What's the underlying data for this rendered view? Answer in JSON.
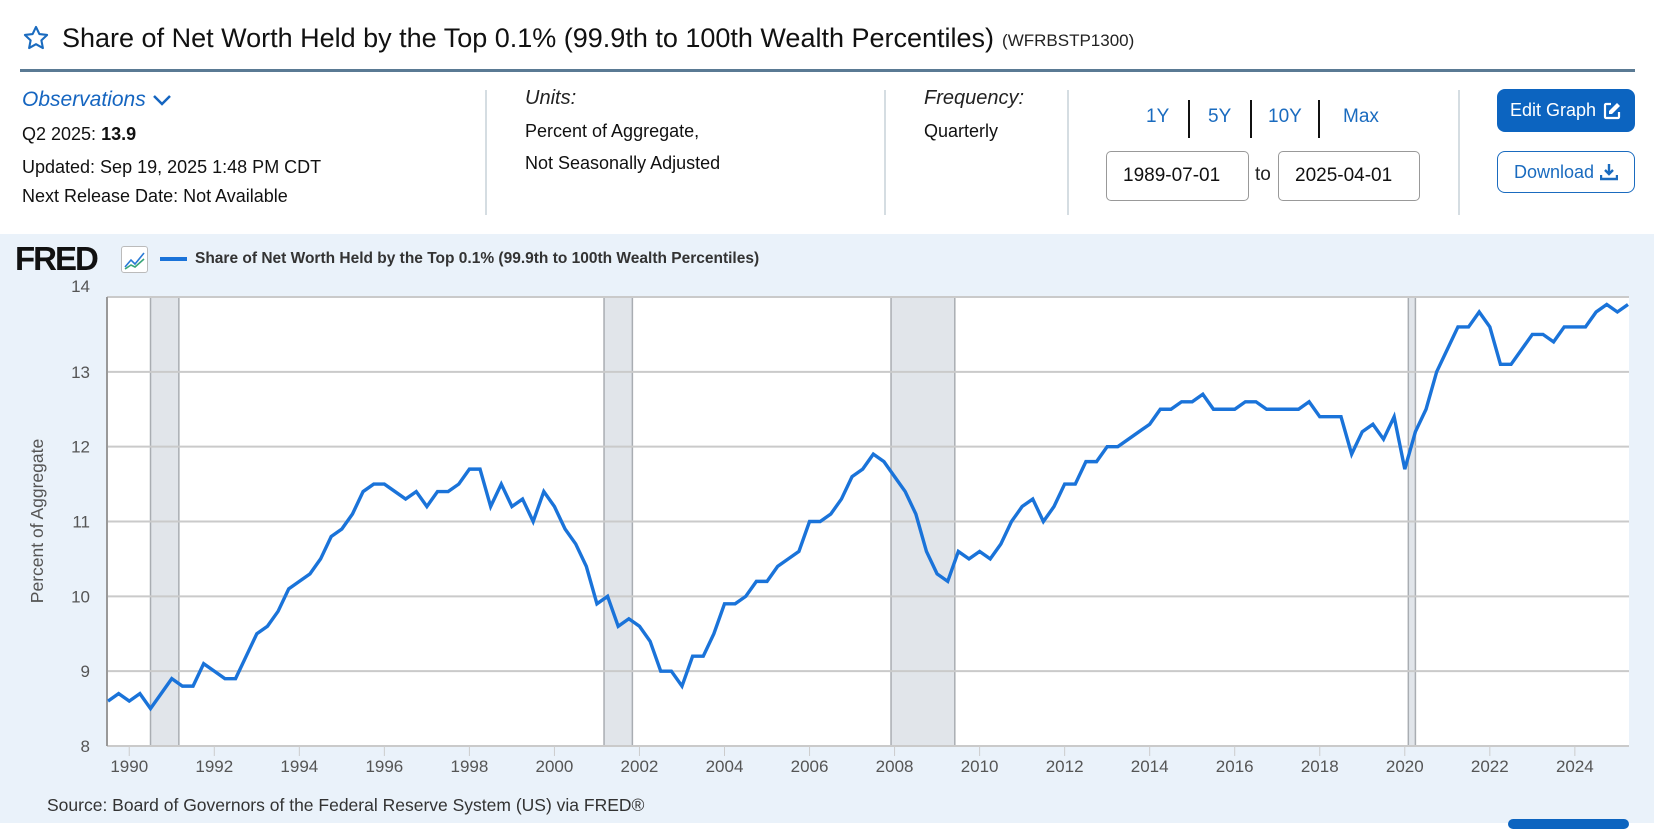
{
  "header": {
    "title": "Share of Net Worth Held by the Top 0.1% (99.9th to 100th Wealth Percentiles)",
    "series_id": "(WFRBSTP1300)",
    "favorite_icon": "star-outline-icon"
  },
  "observations": {
    "link_label": "Observations",
    "latest_label": "Q2 2025:",
    "latest_value": "13.9",
    "updated": "Updated: Sep 19, 2025 1:48 PM CDT",
    "next_release": "Next Release Date: Not Available"
  },
  "units": {
    "label": "Units:",
    "line1": "Percent of Aggregate,",
    "line2": "Not Seasonally Adjusted"
  },
  "frequency": {
    "label": "Frequency:",
    "value": "Quarterly"
  },
  "range": {
    "buttons": [
      "1Y",
      "5Y",
      "10Y",
      "Max"
    ],
    "start": "1989-07-01",
    "to_label": "to",
    "end": "2025-04-01"
  },
  "actions": {
    "edit_graph": "Edit Graph",
    "download": "Download"
  },
  "chart_header": {
    "logo": "FRED",
    "legend_label": "Share of Net Worth Held by the Top 0.1% (99.9th to 100th Wealth Percentiles)"
  },
  "colors": {
    "series": "#1a73d9",
    "recession": "#e1e5ea",
    "accent": "#0c64c0",
    "background": "#eaf2fa"
  },
  "source": "Source: Board of Governors of the Federal Reserve System (US) via FRED®",
  "chart_data": {
    "type": "line",
    "title": "",
    "xlabel": "",
    "ylabel": "Percent of Aggregate",
    "xlim": [
      "1989-07-01",
      "2025-04-01"
    ],
    "ylim": [
      8,
      14
    ],
    "yticks": [
      8,
      9,
      10,
      11,
      12,
      13,
      14
    ],
    "xticks": [
      "1990",
      "1992",
      "1994",
      "1996",
      "1998",
      "2000",
      "2002",
      "2004",
      "2006",
      "2008",
      "2010",
      "2012",
      "2014",
      "2016",
      "2018",
      "2020",
      "2022",
      "2024"
    ],
    "grid": true,
    "legend": "top-left",
    "recessions": [
      [
        "1990-07-01",
        "1991-03-01"
      ],
      [
        "2001-03-01",
        "2001-11-01"
      ],
      [
        "2007-12-01",
        "2009-06-01"
      ],
      [
        "2020-02-01",
        "2020-04-01"
      ]
    ],
    "series": [
      {
        "name": "Share of Net Worth Held by the Top 0.1% (99.9th to 100th Wealth Percentiles)",
        "start": "1989-07-01",
        "frequency": "Quarterly",
        "values": [
          8.6,
          8.7,
          8.6,
          8.7,
          8.5,
          8.7,
          8.9,
          8.8,
          8.8,
          9.1,
          9.0,
          8.9,
          8.9,
          9.2,
          9.5,
          9.6,
          9.8,
          10.1,
          10.2,
          10.3,
          10.5,
          10.8,
          10.9,
          11.1,
          11.4,
          11.5,
          11.5,
          11.4,
          11.3,
          11.4,
          11.2,
          11.4,
          11.4,
          11.5,
          11.7,
          11.7,
          11.2,
          11.5,
          11.2,
          11.3,
          11.0,
          11.4,
          11.2,
          10.9,
          10.7,
          10.4,
          9.9,
          10.0,
          9.6,
          9.7,
          9.6,
          9.4,
          9.0,
          9.0,
          8.8,
          9.2,
          9.2,
          9.5,
          9.9,
          9.9,
          10.0,
          10.2,
          10.2,
          10.4,
          10.5,
          10.6,
          11.0,
          11.0,
          11.1,
          11.3,
          11.6,
          11.7,
          11.9,
          11.8,
          11.6,
          11.4,
          11.1,
          10.6,
          10.3,
          10.2,
          10.6,
          10.5,
          10.6,
          10.5,
          10.7,
          11.0,
          11.2,
          11.3,
          11.0,
          11.2,
          11.5,
          11.5,
          11.8,
          11.8,
          12.0,
          12.0,
          12.1,
          12.2,
          12.3,
          12.5,
          12.5,
          12.6,
          12.6,
          12.7,
          12.5,
          12.5,
          12.5,
          12.6,
          12.6,
          12.5,
          12.5,
          12.5,
          12.5,
          12.6,
          12.4,
          12.4,
          12.4,
          11.9,
          12.2,
          12.3,
          12.1,
          12.4,
          11.7,
          12.2,
          12.5,
          13.0,
          13.3,
          13.6,
          13.6,
          13.8,
          13.6,
          13.1,
          13.1,
          13.3,
          13.5,
          13.5,
          13.4,
          13.6,
          13.6,
          13.6,
          13.8,
          13.9,
          13.8,
          13.9
        ]
      }
    ]
  }
}
